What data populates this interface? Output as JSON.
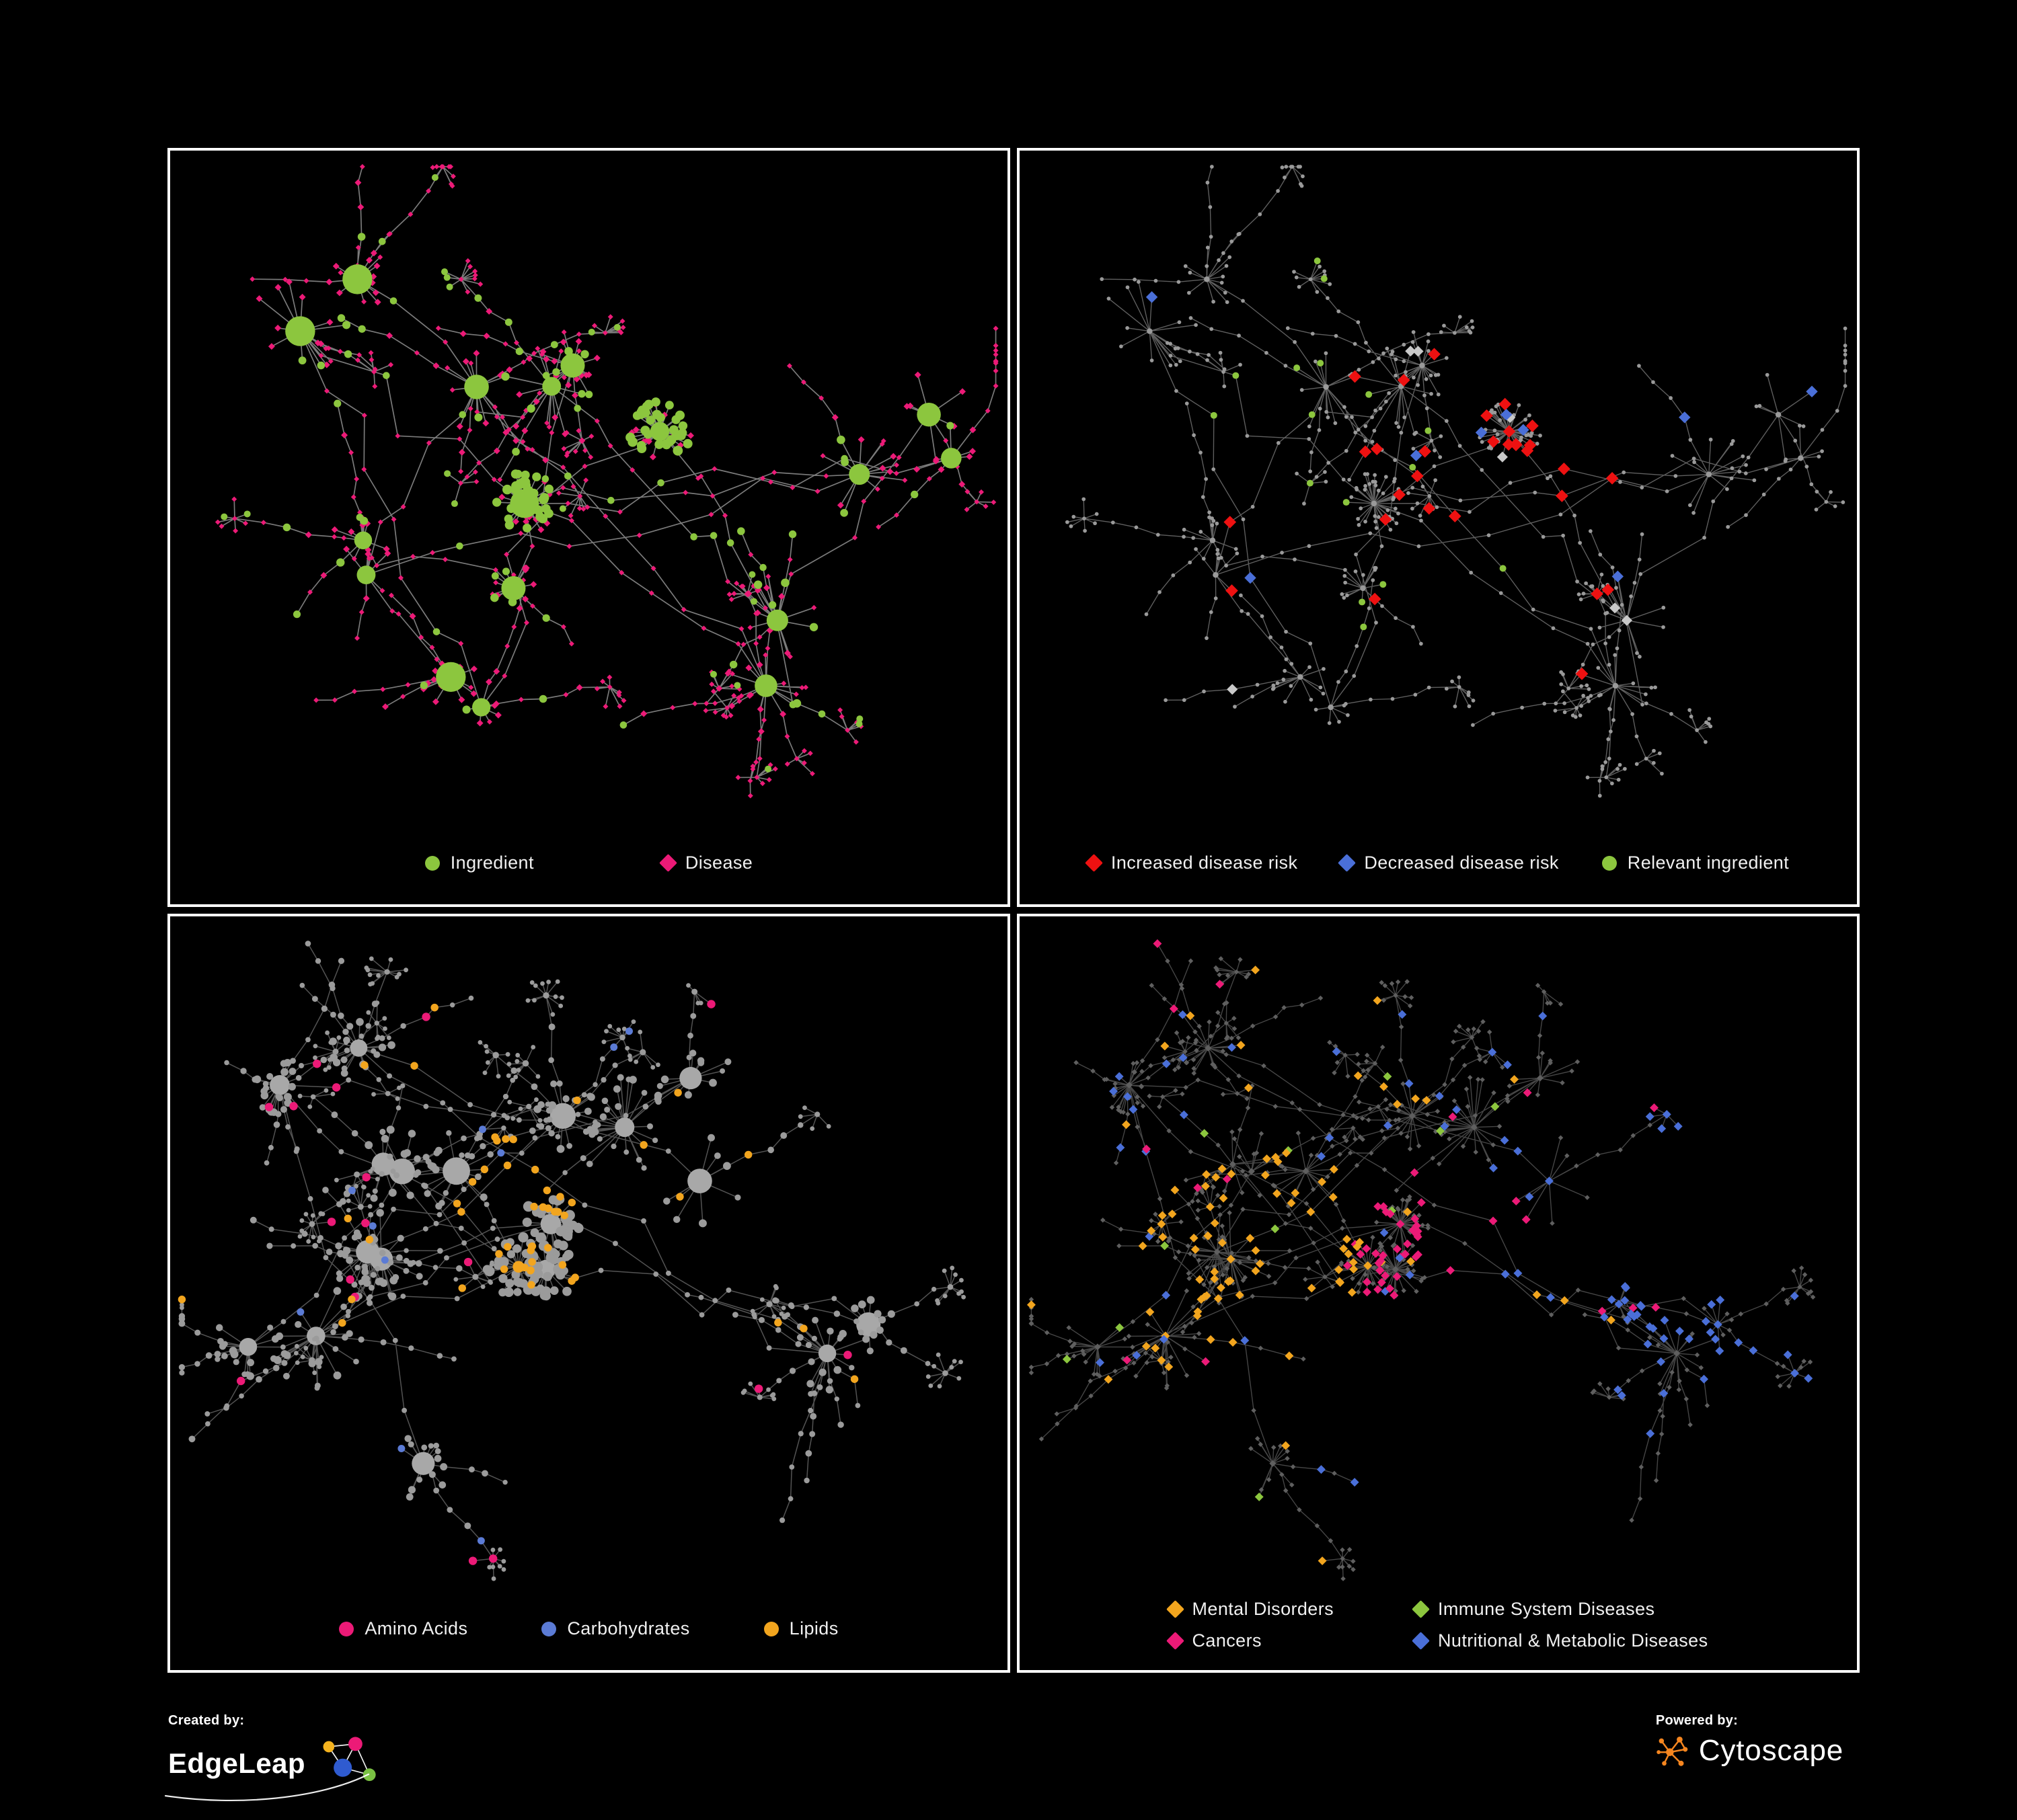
{
  "colors": {
    "background": "#000000",
    "panel_border": "#ffffff",
    "text": "#f0f0f0",
    "green": "#8cc63e",
    "magenta": "#ec1a77",
    "red": "#ee1111",
    "blue": "#4a6fd8",
    "carb_blue": "#5b7bd5",
    "orange": "#f2a51e",
    "gray_node": "#9a9a9a",
    "dark_node": "#5f5f5f",
    "light_diamond": "#c9c9c9",
    "edge_top_left": "#9a9a9a",
    "edge_top_right": "#878787",
    "edge_bottom": "#8a8a8a",
    "cytoscape_orange": "#f6861f",
    "edgeleap_yellow": "#f5b31e",
    "edgeleap_pink": "#ec1a77",
    "edgeleap_blue": "#2f5bd0",
    "edgeleap_green": "#7ac143"
  },
  "panels": [
    {
      "name": "ingredient-disease-network",
      "legend": [
        {
          "label": "Ingredient",
          "shape": "circle",
          "color": "#8cc63e"
        },
        {
          "label": "Disease",
          "shape": "diamond",
          "color": "#ec1a77"
        }
      ]
    },
    {
      "name": "disease-risk-network",
      "legend": [
        {
          "label": "Increased disease risk",
          "shape": "diamond",
          "color": "#ee1111"
        },
        {
          "label": "Decreased disease risk",
          "shape": "diamond",
          "color": "#4a6fd8"
        },
        {
          "label": "Relevant ingredient",
          "shape": "circle",
          "color": "#8cc63e"
        }
      ]
    },
    {
      "name": "macronutrient-network",
      "legend": [
        {
          "label": "Amino Acids",
          "shape": "circle",
          "color": "#ec1a77"
        },
        {
          "label": "Carbohydrates",
          "shape": "circle",
          "color": "#5b7bd5"
        },
        {
          "label": "Lipids",
          "shape": "circle",
          "color": "#f2a51e"
        }
      ]
    },
    {
      "name": "disease-category-network",
      "legend": [
        {
          "label": "Mental Disorders",
          "shape": "diamond",
          "color": "#f2a51e"
        },
        {
          "label": "Immune System Diseases",
          "shape": "diamond",
          "color": "#8cc63e"
        },
        {
          "label": "Cancers",
          "shape": "diamond",
          "color": "#ec1a77"
        },
        {
          "label": "Nutritional &amp; Metabolic Diseases",
          "shape": "diamond",
          "color": "#4a6fd8"
        }
      ]
    }
  ],
  "footer": {
    "created_by_label": "Created by:",
    "created_by_name": "EdgeLeap",
    "powered_by_label": "Powered by:",
    "powered_by_name": "Cytoscape"
  }
}
